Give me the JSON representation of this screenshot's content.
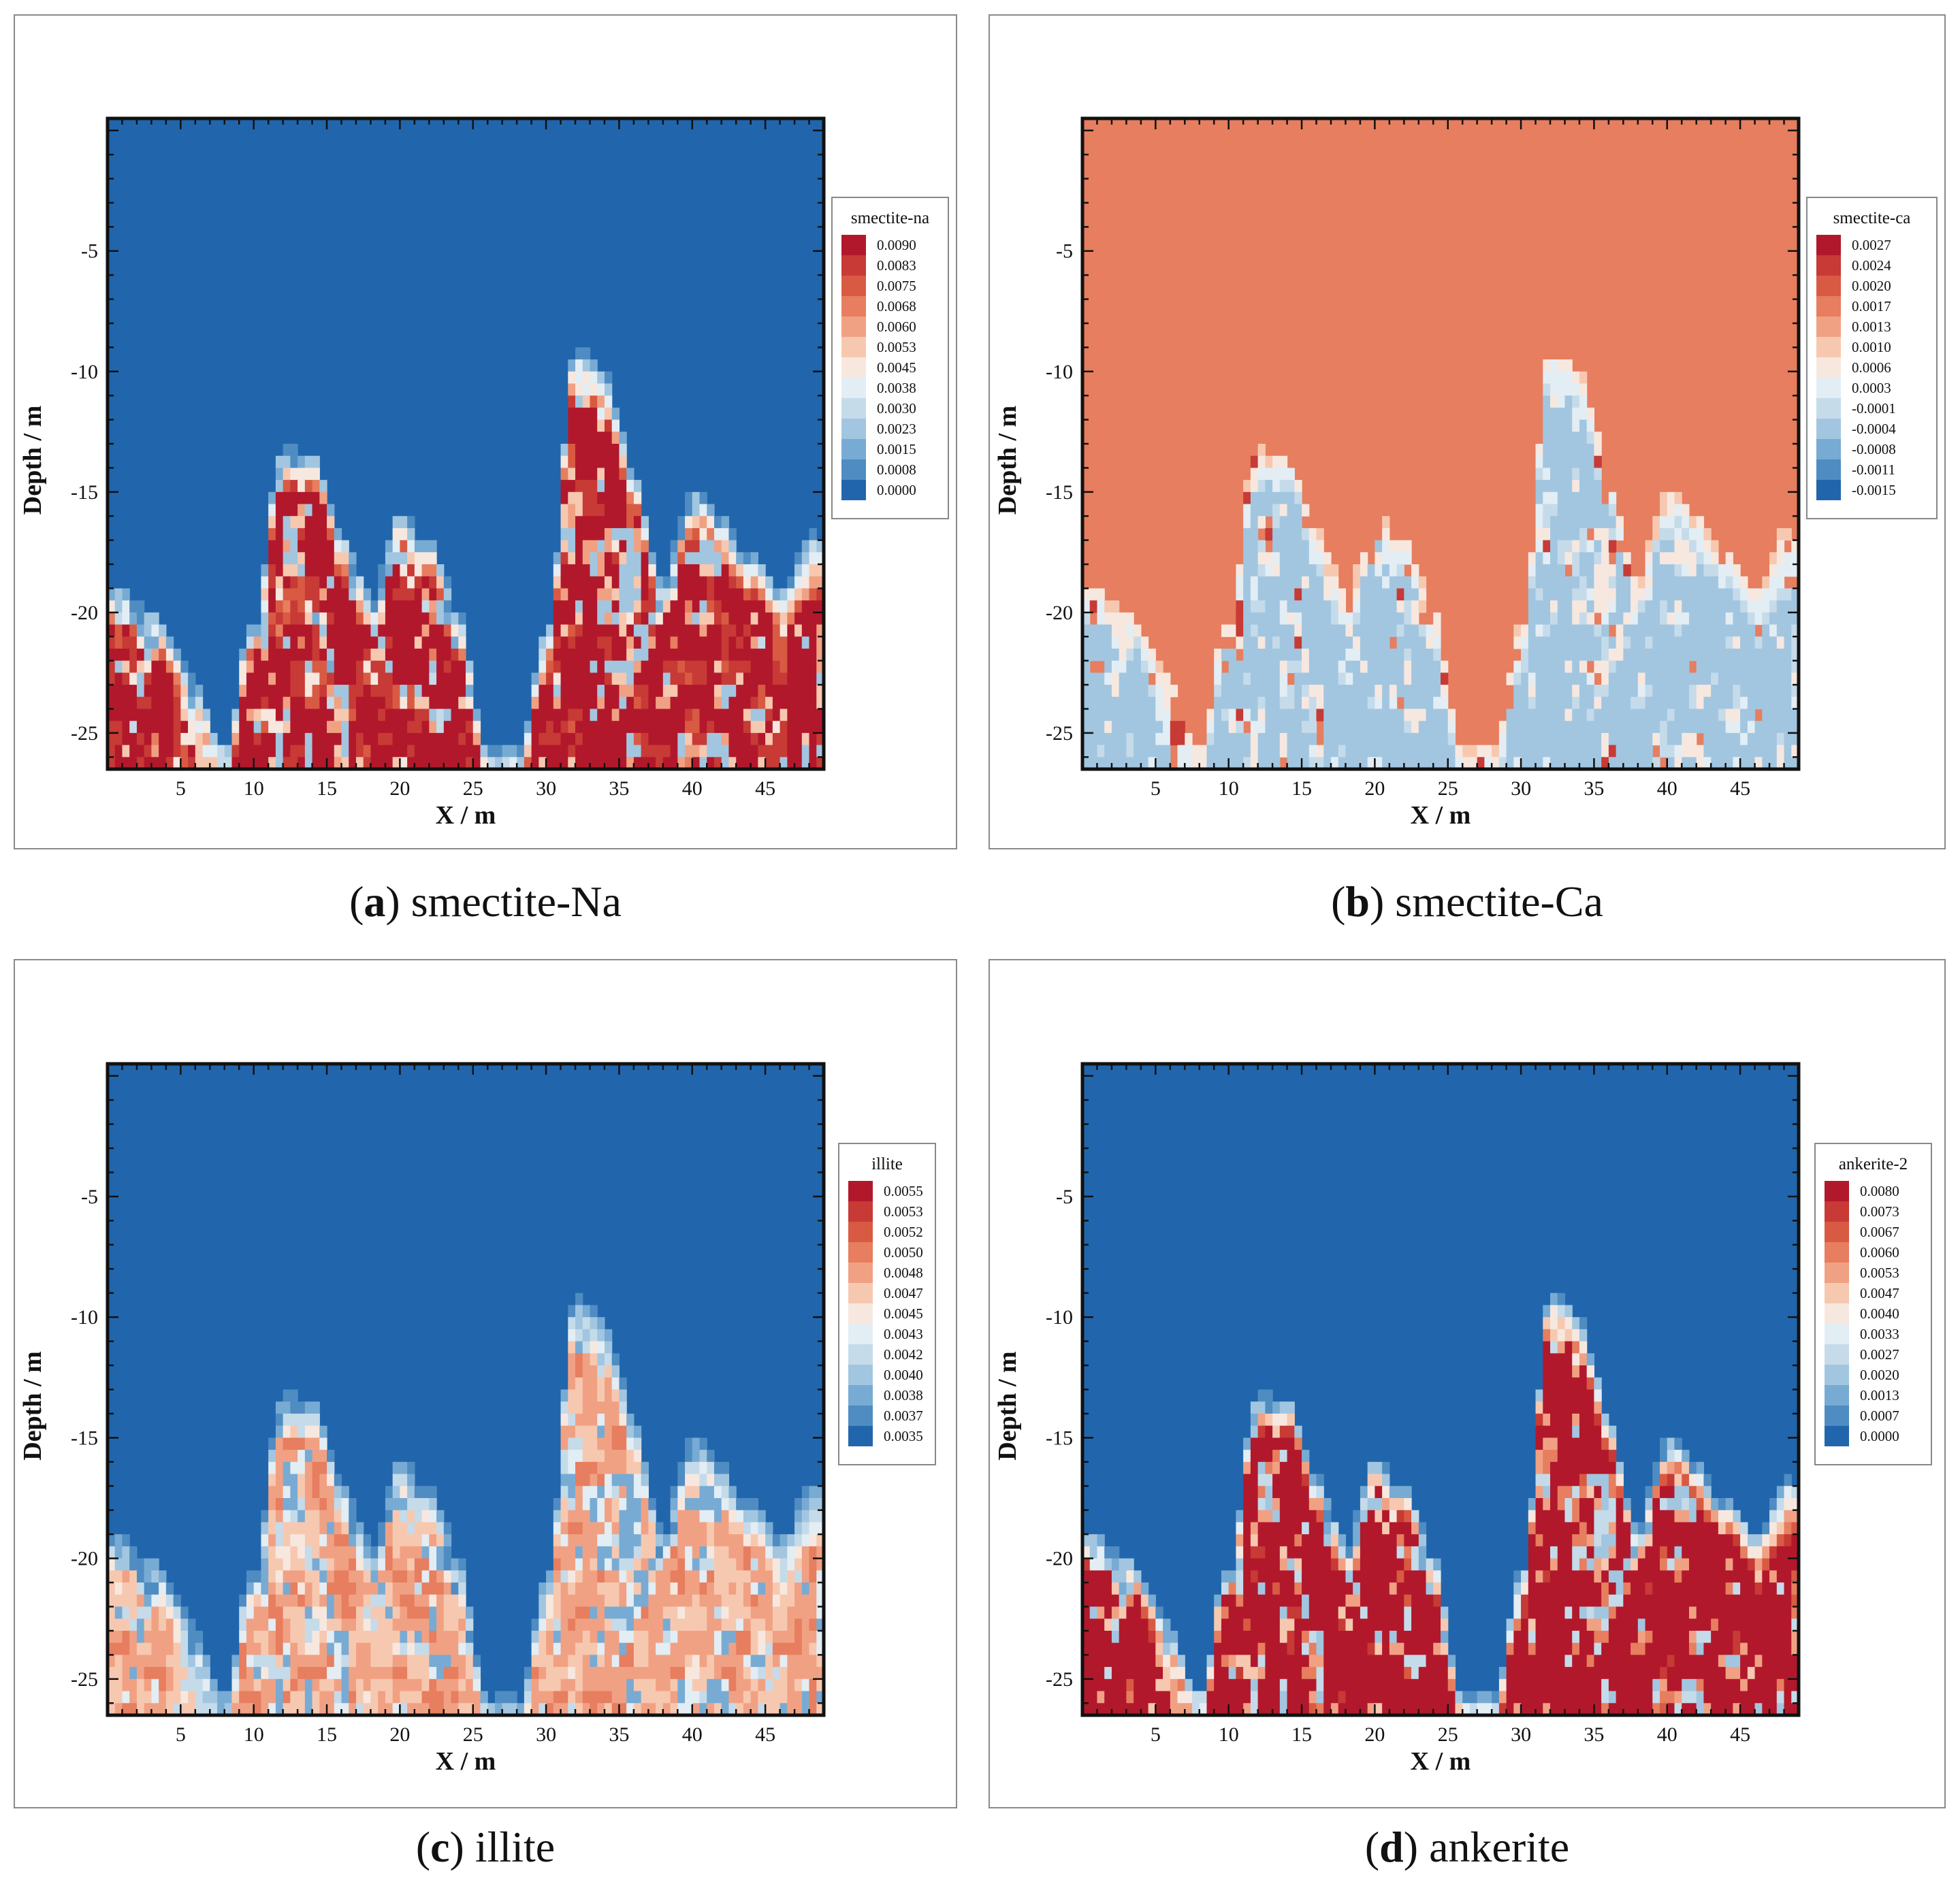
{
  "figure": {
    "panels": [
      {
        "id": "a",
        "caption_letter": "a",
        "caption_text": "smectite-Na",
        "legend_title": "smectite-na",
        "field": "smectite_na",
        "background": "blue",
        "legend_levels": [
          "0.0090",
          "0.0083",
          "0.0075",
          "0.0068",
          "0.0060",
          "0.0053",
          "0.0045",
          "0.0038",
          "0.0030",
          "0.0023",
          "0.0015",
          "0.0008",
          "0.0000"
        ]
      },
      {
        "id": "b",
        "caption_letter": "b",
        "caption_text": "smectite-Ca",
        "legend_title": "smectite-ca",
        "field": "smectite_ca",
        "background": "orange",
        "legend_levels": [
          "0.0027",
          "0.0024",
          "0.0020",
          "0.0017",
          "0.0013",
          "0.0010",
          "0.0006",
          "0.0003",
          "-0.0001",
          "-0.0004",
          "-0.0008",
          "-0.0011",
          "-0.0015"
        ]
      },
      {
        "id": "c",
        "caption_letter": "c",
        "caption_text": "illite",
        "legend_title": "illite",
        "field": "illite",
        "background": "blue",
        "legend_levels": [
          "0.0055",
          "0.0053",
          "0.0052",
          "0.0050",
          "0.0048",
          "0.0047",
          "0.0045",
          "0.0043",
          "0.0042",
          "0.0040",
          "0.0038",
          "0.0037",
          "0.0035"
        ]
      },
      {
        "id": "d",
        "caption_letter": "d",
        "caption_text": "ankerite",
        "legend_title": "ankerite-2",
        "field": "ankerite",
        "background": "blue",
        "legend_levels": [
          "0.0080",
          "0.0073",
          "0.0067",
          "0.0060",
          "0.0053",
          "0.0047",
          "0.0040",
          "0.0033",
          "0.0027",
          "0.0020",
          "0.0013",
          "0.0007",
          "0.0000"
        ]
      }
    ],
    "palette": [
      "#b2182b",
      "#c73a35",
      "#d95a43",
      "#e67e5f",
      "#f1a183",
      "#f7c8b0",
      "#f7e8df",
      "#e3edf4",
      "#c5dbea",
      "#a2c6e0",
      "#78abd3",
      "#4f8cc2",
      "#2166ac"
    ]
  },
  "chart_data": [
    {
      "type": "heatmap",
      "title": "smectite-na",
      "caption": "(a) smectite-Na",
      "xlabel": "X / m",
      "ylabel": "Depth / m",
      "xlim": [
        0,
        49
      ],
      "ylim": [
        -26.5,
        0.5
      ],
      "xticks": [
        5,
        10,
        15,
        20,
        25,
        30,
        35,
        40,
        45
      ],
      "yticks": [
        -5,
        -10,
        -15,
        -20,
        -25
      ],
      "colorbar_levels": [
        0.009,
        0.0083,
        0.0075,
        0.0068,
        0.006,
        0.0053,
        0.0045,
        0.0038,
        0.003,
        0.0023,
        0.0015,
        0.0008,
        0.0
      ],
      "description_regions": [
        {
          "x_range": [
            0,
            7
          ],
          "depth_top": -18,
          "peak": 0.0083
        },
        {
          "x_range": [
            10,
            25
          ],
          "depth_top": -12.5,
          "peak": 0.009
        },
        {
          "x_range": [
            30,
            49
          ],
          "depth_top": -8,
          "peak": 0.009
        }
      ]
    },
    {
      "type": "heatmap",
      "title": "smectite-ca",
      "caption": "(b) smectite-Ca",
      "xlabel": "X / m",
      "ylabel": "Depth / m",
      "xlim": [
        0,
        49
      ],
      "ylim": [
        -26.5,
        0.5
      ],
      "xticks": [
        5,
        10,
        15,
        20,
        25,
        30,
        35,
        40,
        45
      ],
      "yticks": [
        -5,
        -10,
        -15,
        -20,
        -25
      ],
      "colorbar_levels": [
        0.0027,
        0.0024,
        0.002,
        0.0017,
        0.0013,
        0.001,
        0.0006,
        0.0003,
        -0.0001,
        -0.0004,
        -0.0008,
        -0.0011,
        -0.0015
      ],
      "background_value": 0.002
    },
    {
      "type": "heatmap",
      "title": "illite",
      "caption": "(c) illite",
      "xlabel": "X / m",
      "ylabel": "Depth / m",
      "xlim": [
        0,
        49
      ],
      "ylim": [
        -26.5,
        0.5
      ],
      "xticks": [
        5,
        10,
        15,
        20,
        25,
        30,
        35,
        40,
        45
      ],
      "yticks": [
        -5,
        -10,
        -15,
        -20,
        -25
      ],
      "colorbar_levels": [
        0.0055,
        0.0053,
        0.0052,
        0.005,
        0.0048,
        0.0047,
        0.0045,
        0.0043,
        0.0042,
        0.004,
        0.0038,
        0.0037,
        0.0035
      ],
      "background_value": 0.0035
    },
    {
      "type": "heatmap",
      "title": "ankerite-2",
      "caption": "(d) ankerite",
      "xlabel": "X / m",
      "ylabel": "Depth / m",
      "xlim": [
        0,
        49
      ],
      "ylim": [
        -26.5,
        0.5
      ],
      "xticks": [
        5,
        10,
        15,
        20,
        25,
        30,
        35,
        40,
        45
      ],
      "yticks": [
        -5,
        -10,
        -15,
        -20,
        -25
      ],
      "colorbar_levels": [
        0.008,
        0.0073,
        0.0067,
        0.006,
        0.0053,
        0.0047,
        0.004,
        0.0033,
        0.0027,
        0.002,
        0.0013,
        0.0007,
        0.0
      ],
      "background_value": 0.0
    }
  ]
}
